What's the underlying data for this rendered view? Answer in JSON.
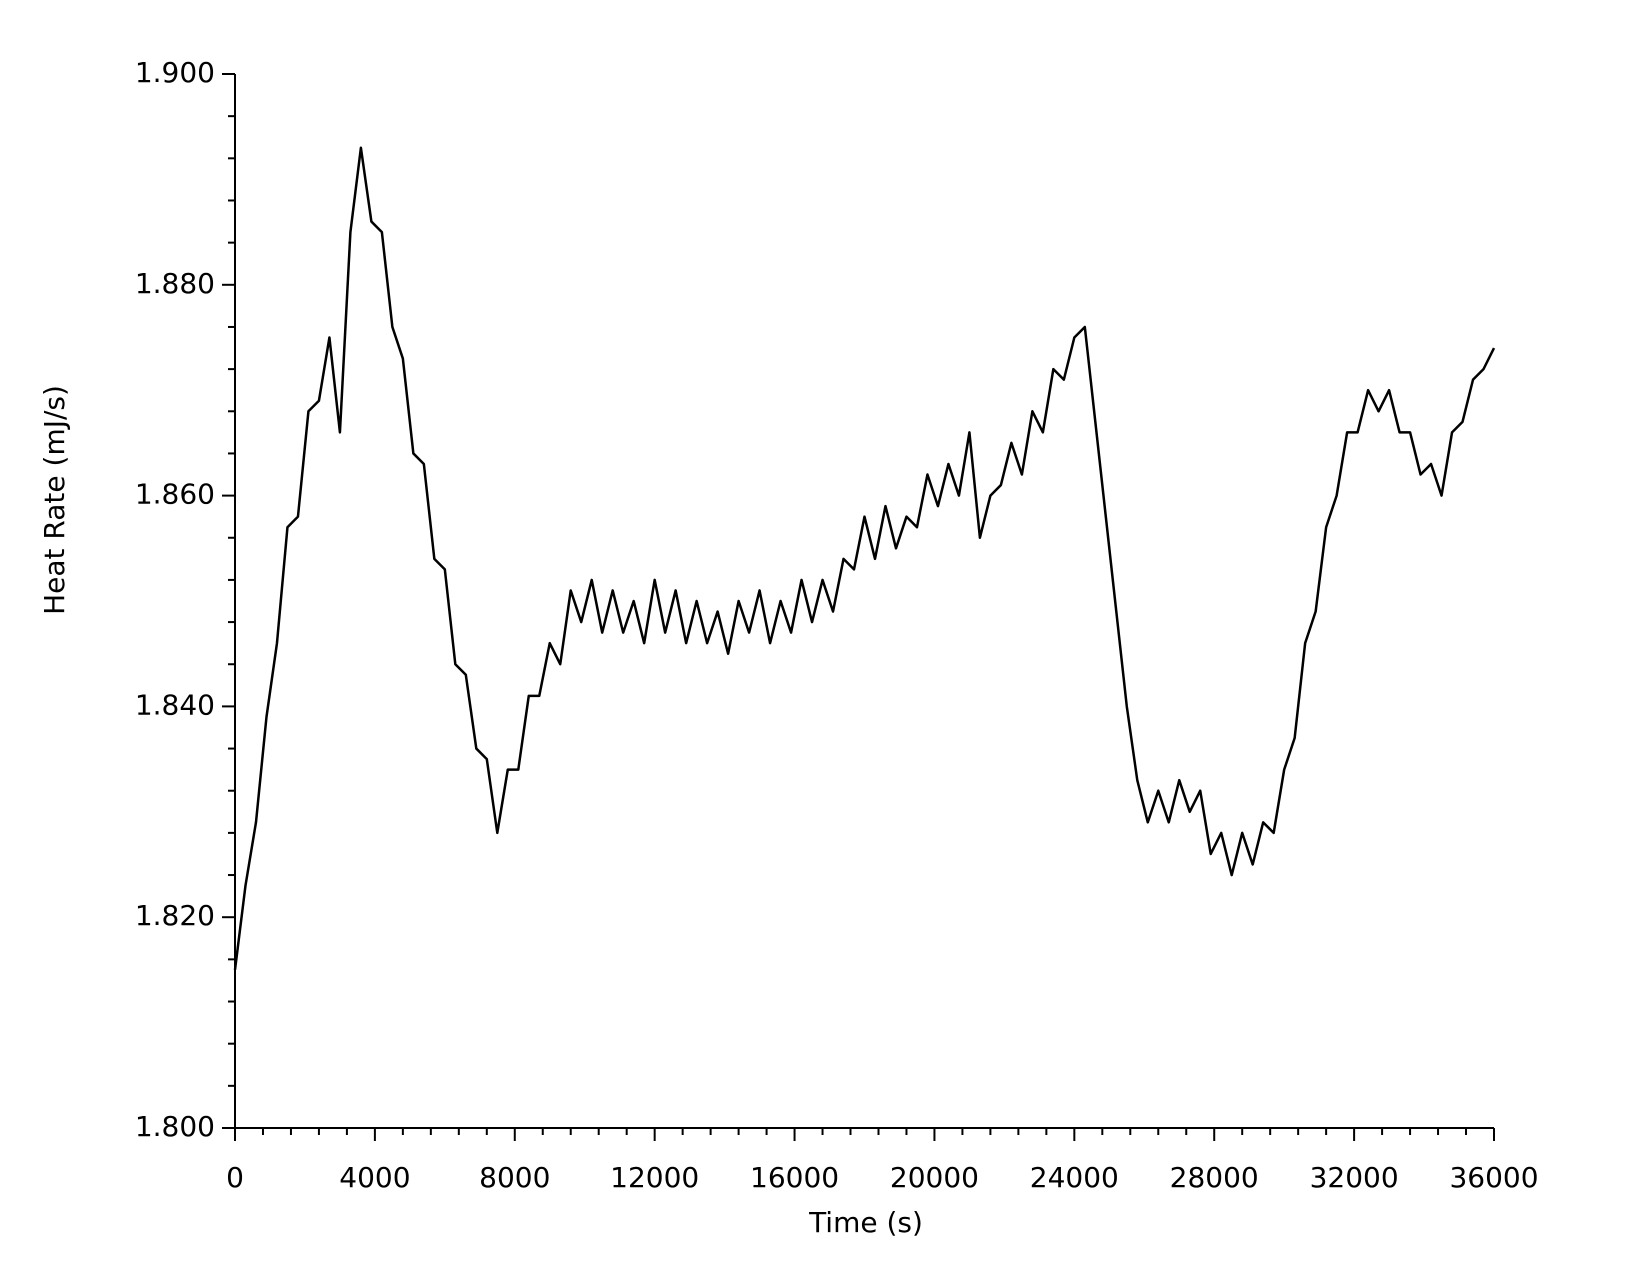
{
  "chart_data": {
    "type": "line",
    "x_label": "Time (s)",
    "y_label": "Heat Rate (mJ/s)",
    "xlim": [
      0,
      36000
    ],
    "ylim": [
      1.8,
      1.9
    ],
    "xticks": [
      0,
      4000,
      8000,
      12000,
      16000,
      20000,
      24000,
      28000,
      32000,
      36000
    ],
    "yticks": [
      {
        "value": 1.8,
        "label": "1.800"
      },
      {
        "value": 1.82,
        "label": "1.820"
      },
      {
        "value": 1.84,
        "label": "1.840"
      },
      {
        "value": 1.86,
        "label": "1.860"
      },
      {
        "value": 1.88,
        "label": "1.880"
      },
      {
        "value": 1.9,
        "label": "1.900"
      }
    ],
    "xminorticks": [
      800,
      1600,
      2400,
      3200,
      4800,
      5600,
      6400,
      7200,
      8800,
      9600,
      10400,
      11200,
      12800,
      13600,
      14400,
      15200,
      16800,
      17600,
      18400,
      19200,
      20800,
      21600,
      22400,
      23200,
      24800,
      25600,
      26400,
      27200,
      28800,
      29600,
      30400,
      31200,
      32800,
      33600,
      34400,
      35200
    ],
    "yminorticks": [
      1.804,
      1.808,
      1.812,
      1.816,
      1.824,
      1.828,
      1.832,
      1.836,
      1.844,
      1.848,
      1.852,
      1.856,
      1.864,
      1.868,
      1.872,
      1.876,
      1.884,
      1.888,
      1.892,
      1.896
    ],
    "x": [
      0,
      300,
      600,
      900,
      1200,
      1500,
      1800,
      2100,
      2400,
      2700,
      3000,
      3300,
      3600,
      3900,
      4200,
      4500,
      4800,
      5100,
      5400,
      5700,
      6000,
      6300,
      6600,
      6900,
      7200,
      7500,
      7800,
      8100,
      8400,
      8700,
      9000,
      9300,
      9600,
      9900,
      10200,
      10500,
      10800,
      11100,
      11400,
      11700,
      12000,
      12300,
      12600,
      12900,
      13200,
      13500,
      13800,
      14100,
      14400,
      14700,
      15000,
      15300,
      15600,
      15900,
      16200,
      16500,
      16800,
      17100,
      17400,
      17700,
      18000,
      18300,
      18600,
      18900,
      19200,
      19500,
      19800,
      20100,
      20400,
      20700,
      21000,
      21300,
      21600,
      21900,
      22200,
      22500,
      22800,
      23100,
      23400,
      23700,
      24000,
      24300,
      24600,
      24900,
      25200,
      25500,
      25800,
      26100,
      26400,
      26700,
      27000,
      27300,
      27600,
      27900,
      28200,
      28500,
      28800,
      29100,
      29400,
      29700,
      30000,
      30300,
      30600,
      30900,
      31200,
      31500,
      31800,
      32100,
      32400,
      32700,
      33000,
      33300,
      33600,
      33900,
      34200,
      34500,
      34800,
      35100,
      35400,
      35700,
      36000
    ],
    "series": [
      {
        "color": "#000000",
        "values": [
          1.815,
          1.823,
          1.829,
          1.839,
          1.846,
          1.857,
          1.858,
          1.868,
          1.869,
          1.875,
          1.866,
          1.885,
          1.893,
          1.886,
          1.885,
          1.876,
          1.873,
          1.864,
          1.863,
          1.854,
          1.853,
          1.844,
          1.843,
          1.836,
          1.835,
          1.828,
          1.834,
          1.834,
          1.841,
          1.841,
          1.846,
          1.844,
          1.851,
          1.848,
          1.852,
          1.847,
          1.851,
          1.847,
          1.85,
          1.846,
          1.852,
          1.847,
          1.851,
          1.846,
          1.85,
          1.846,
          1.849,
          1.845,
          1.85,
          1.847,
          1.851,
          1.846,
          1.85,
          1.847,
          1.852,
          1.848,
          1.852,
          1.849,
          1.854,
          1.853,
          1.858,
          1.854,
          1.859,
          1.855,
          1.858,
          1.857,
          1.862,
          1.859,
          1.863,
          1.86,
          1.866,
          1.856,
          1.86,
          1.861,
          1.865,
          1.862,
          1.868,
          1.866,
          1.872,
          1.871,
          1.875,
          1.876,
          1.867,
          1.858,
          1.849,
          1.84,
          1.833,
          1.829,
          1.832,
          1.829,
          1.833,
          1.83,
          1.832,
          1.826,
          1.828,
          1.824,
          1.828,
          1.825,
          1.829,
          1.828,
          1.834,
          1.837,
          1.846,
          1.849,
          1.857,
          1.86,
          1.866,
          1.866,
          1.87,
          1.868,
          1.87,
          1.866,
          1.866,
          1.862,
          1.863,
          1.86,
          1.866,
          1.867,
          1.871,
          1.872,
          1.874
        ]
      }
    ]
  }
}
